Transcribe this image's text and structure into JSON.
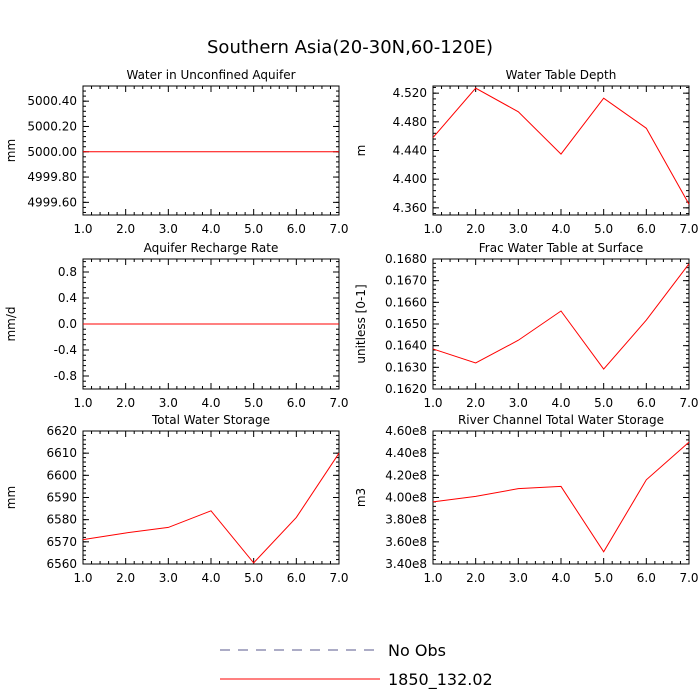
{
  "figure": {
    "title": "Southern Asia(20-30N,60-120E)"
  },
  "legend": {
    "placement": "bottom-center",
    "items": [
      {
        "label": "No Obs",
        "style": "dashed",
        "color": "#5a5a8c"
      },
      {
        "label": "1850_132.02",
        "style": "solid",
        "color": "#ff0000"
      }
    ]
  },
  "chart_data": [
    {
      "type": "line",
      "title": "Water in Unconfined Aquifer",
      "ylabel": "mm",
      "xlim": [
        1,
        7
      ],
      "ylim": [
        4999.5,
        5000.52
      ],
      "xticks": [
        "1.0",
        "2.0",
        "3.0",
        "4.0",
        "5.0",
        "6.0",
        "7.0"
      ],
      "yticks": [
        {
          "v": 4999.6,
          "label": "4999.60"
        },
        {
          "v": 4999.8,
          "label": "4999.80"
        },
        {
          "v": 5000.0,
          "label": "5000.00"
        },
        {
          "v": 5000.2,
          "label": "5000.20"
        },
        {
          "v": 5000.4,
          "label": "5000.40"
        }
      ],
      "series": [
        {
          "name": "1850_132.02",
          "color": "#ff0000",
          "x": [
            1,
            2,
            3,
            4,
            5,
            6,
            7
          ],
          "y": [
            5000.0,
            5000.0,
            5000.0,
            5000.0,
            5000.0,
            5000.0,
            5000.0
          ]
        }
      ]
    },
    {
      "type": "line",
      "title": "Water Table Depth",
      "ylabel": "m",
      "xlim": [
        1,
        7
      ],
      "ylim": [
        4.35,
        4.53
      ],
      "xticks": [
        "1.0",
        "2.0",
        "3.0",
        "4.0",
        "5.0",
        "6.0",
        "7.0"
      ],
      "yticks": [
        {
          "v": 4.36,
          "label": "4.360"
        },
        {
          "v": 4.4,
          "label": "4.400"
        },
        {
          "v": 4.44,
          "label": "4.440"
        },
        {
          "v": 4.48,
          "label": "4.480"
        },
        {
          "v": 4.52,
          "label": "4.520"
        }
      ],
      "series": [
        {
          "name": "1850_132.02",
          "color": "#ff0000",
          "x": [
            1,
            2,
            3,
            4,
            5,
            6,
            7
          ],
          "y": [
            4.458,
            4.527,
            4.494,
            4.435,
            4.513,
            4.471,
            4.365
          ]
        }
      ]
    },
    {
      "type": "line",
      "title": "Aquifer Recharge Rate",
      "ylabel": "mm/d",
      "xlim": [
        1,
        7
      ],
      "ylim": [
        -1.0,
        1.0
      ],
      "xticks": [
        "1.0",
        "2.0",
        "3.0",
        "4.0",
        "5.0",
        "6.0",
        "7.0"
      ],
      "yticks": [
        {
          "v": -0.8,
          "label": "-0.8"
        },
        {
          "v": -0.4,
          "label": "-0.4"
        },
        {
          "v": 0.0,
          "label": "0.0"
        },
        {
          "v": 0.4,
          "label": "0.4"
        },
        {
          "v": 0.8,
          "label": "0.8"
        }
      ],
      "series": [
        {
          "name": "1850_132.02",
          "color": "#ff0000",
          "x": [
            1,
            2,
            3,
            4,
            5,
            6,
            7
          ],
          "y": [
            0,
            0,
            0,
            0,
            0,
            0,
            0
          ]
        }
      ]
    },
    {
      "type": "line",
      "title": "Frac Water Table at Surface",
      "ylabel": "unitless [0-1]",
      "xlim": [
        1,
        7
      ],
      "ylim": [
        0.162,
        0.168
      ],
      "xticks": [
        "1.0",
        "2.0",
        "3.0",
        "4.0",
        "5.0",
        "6.0",
        "7.0"
      ],
      "yticks": [
        {
          "v": 0.162,
          "label": "0.1620"
        },
        {
          "v": 0.163,
          "label": "0.1630"
        },
        {
          "v": 0.164,
          "label": "0.1640"
        },
        {
          "v": 0.165,
          "label": "0.1650"
        },
        {
          "v": 0.166,
          "label": "0.1660"
        },
        {
          "v": 0.167,
          "label": "0.1670"
        },
        {
          "v": 0.168,
          "label": "0.1680"
        }
      ],
      "series": [
        {
          "name": "1850_132.02",
          "color": "#ff0000",
          "x": [
            1,
            2,
            3,
            4,
            5,
            6,
            7
          ],
          "y": [
            0.16385,
            0.1632,
            0.16425,
            0.1656,
            0.16292,
            0.16518,
            0.16778
          ]
        }
      ]
    },
    {
      "type": "line",
      "title": "Total Water Storage",
      "ylabel": "mm",
      "xlim": [
        1,
        7
      ],
      "ylim": [
        6560,
        6620
      ],
      "xticks": [
        "1.0",
        "2.0",
        "3.0",
        "4.0",
        "5.0",
        "6.0",
        "7.0"
      ],
      "yticks": [
        {
          "v": 6560,
          "label": "6560"
        },
        {
          "v": 6570,
          "label": "6570"
        },
        {
          "v": 6580,
          "label": "6580"
        },
        {
          "v": 6590,
          "label": "6590"
        },
        {
          "v": 6600,
          "label": "6600"
        },
        {
          "v": 6610,
          "label": "6610"
        },
        {
          "v": 6620,
          "label": "6620"
        }
      ],
      "series": [
        {
          "name": "1850_132.02",
          "color": "#ff0000",
          "x": [
            1,
            2,
            3,
            4,
            5,
            6,
            7
          ],
          "y": [
            6571,
            6574,
            6576.5,
            6584,
            6560.5,
            6581,
            6610
          ]
        }
      ]
    },
    {
      "type": "line",
      "title": "River Channel Total Water Storage",
      "ylabel": "m3",
      "xlim": [
        1,
        7
      ],
      "ylim": [
        340000000,
        460000000
      ],
      "xticks": [
        "1.0",
        "2.0",
        "3.0",
        "4.0",
        "5.0",
        "6.0",
        "7.0"
      ],
      "yticks": [
        {
          "v": 340000000,
          "label": "3.40e8"
        },
        {
          "v": 360000000,
          "label": "3.60e8"
        },
        {
          "v": 380000000,
          "label": "3.80e8"
        },
        {
          "v": 400000000,
          "label": "4.00e8"
        },
        {
          "v": 420000000,
          "label": "4.20e8"
        },
        {
          "v": 440000000,
          "label": "4.40e8"
        },
        {
          "v": 460000000,
          "label": "4.60e8"
        }
      ],
      "series": [
        {
          "name": "1850_132.02",
          "color": "#ff0000",
          "x": [
            1,
            2,
            3,
            4,
            5,
            6,
            7
          ],
          "y": [
            396000000,
            401000000,
            408000000,
            410000000,
            351000000,
            416000000,
            450000000
          ]
        }
      ]
    }
  ]
}
